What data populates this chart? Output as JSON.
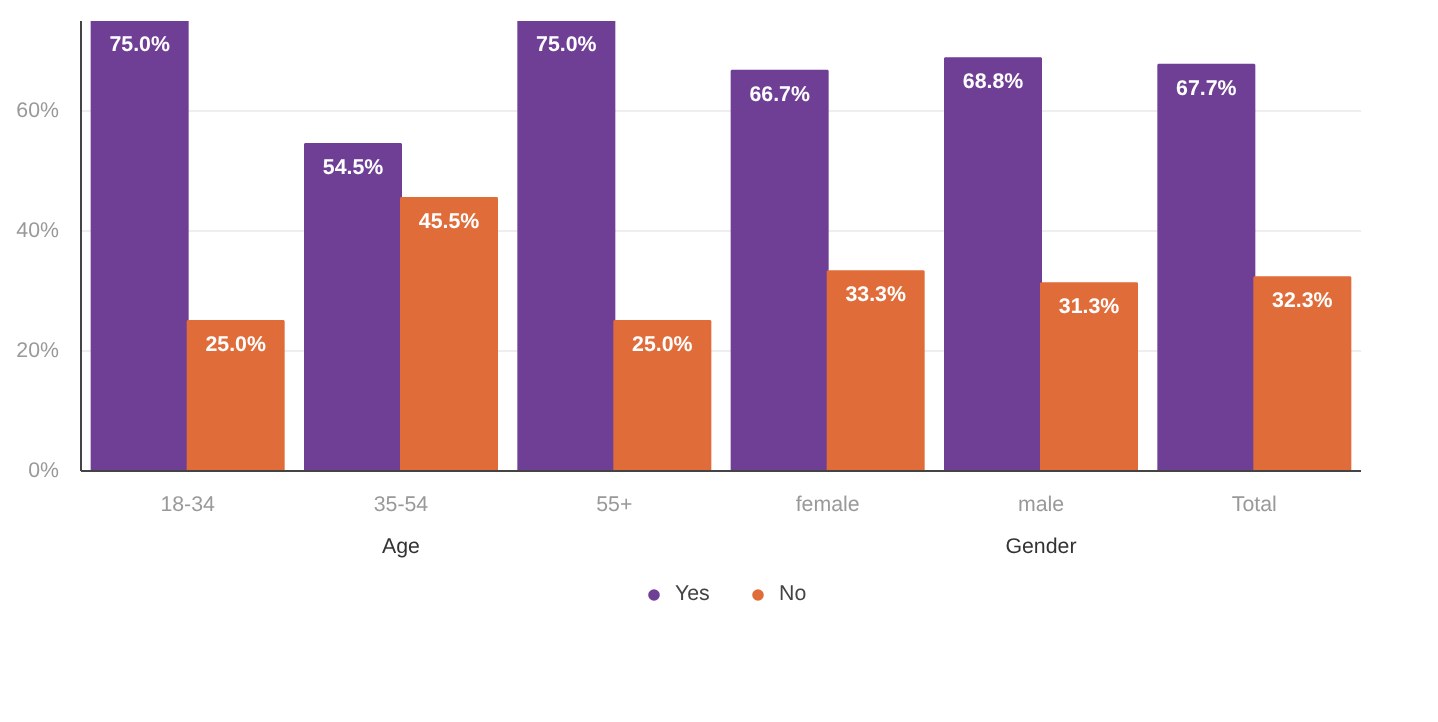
{
  "chart_data": {
    "type": "bar",
    "categories": [
      "18-34",
      "35-54",
      "55+",
      "female",
      "male",
      "Total"
    ],
    "series": [
      {
        "name": "Yes",
        "color": "#6f3f96",
        "values": [
          75.0,
          54.5,
          75.0,
          66.7,
          68.8,
          67.7
        ]
      },
      {
        "name": "No",
        "color": "#e06c3a",
        "values": [
          25.0,
          45.5,
          25.0,
          33.3,
          31.3,
          32.3
        ]
      }
    ],
    "value_labels": [
      [
        "75.0%",
        "54.5%",
        "75.0%",
        "66.7%",
        "68.8%",
        "67.7%"
      ],
      [
        "25.0%",
        "45.5%",
        "25.0%",
        "33.3%",
        "31.3%",
        "32.3%"
      ]
    ],
    "ylim": [
      0,
      75
    ],
    "yticks": [
      {
        "value": 0,
        "label": "0%"
      },
      {
        "value": 20,
        "label": "20%"
      },
      {
        "value": 40,
        "label": "40%"
      },
      {
        "value": 60,
        "label": "60%"
      }
    ],
    "grid": "y",
    "legend": "bottom",
    "annotations": [
      "Age",
      "Gender"
    ]
  }
}
